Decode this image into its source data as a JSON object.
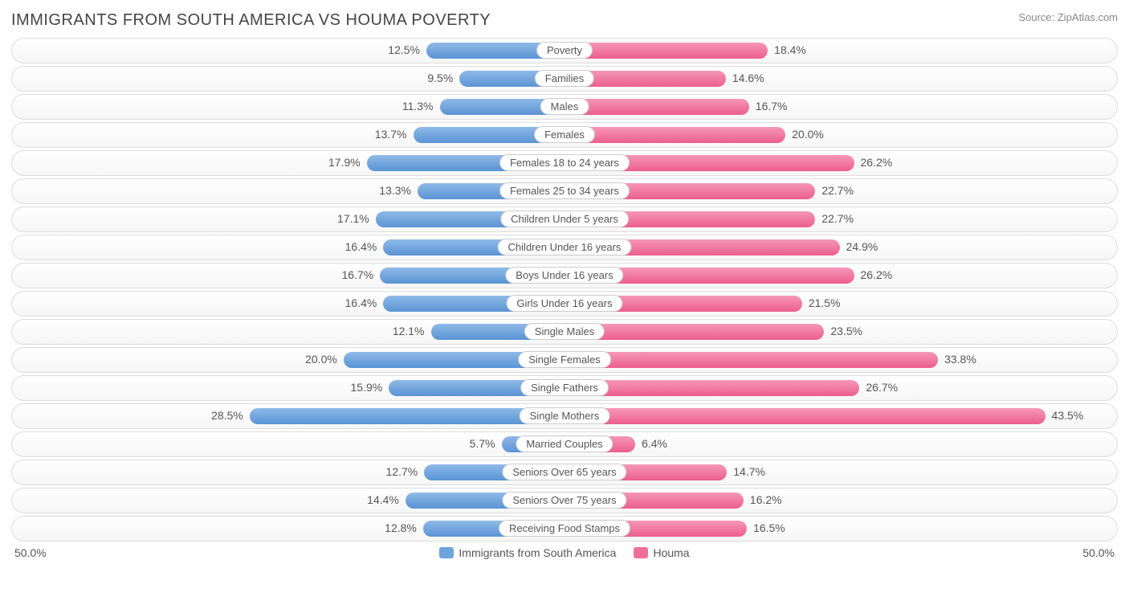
{
  "title": "IMMIGRANTS FROM SOUTH AMERICA VS HOUMA POVERTY",
  "source": "Source: ZipAtlas.com",
  "axis_max": 50.0,
  "axis_left_label": "50.0%",
  "axis_right_label": "50.0%",
  "left_series": {
    "name": "Immigrants from South America",
    "color_top": "#8fbae8",
    "color_bottom": "#5a93d4",
    "swatch": "#6fa3dc"
  },
  "right_series": {
    "name": "Houma",
    "color_top": "#f697b6",
    "color_bottom": "#ec5e8f",
    "swatch": "#ef6f9a"
  },
  "rows": [
    {
      "category": "Poverty",
      "left_val": 12.5,
      "left_label": "12.5%",
      "right_val": 18.4,
      "right_label": "18.4%"
    },
    {
      "category": "Families",
      "left_val": 9.5,
      "left_label": "9.5%",
      "right_val": 14.6,
      "right_label": "14.6%"
    },
    {
      "category": "Males",
      "left_val": 11.3,
      "left_label": "11.3%",
      "right_val": 16.7,
      "right_label": "16.7%"
    },
    {
      "category": "Females",
      "left_val": 13.7,
      "left_label": "13.7%",
      "right_val": 20.0,
      "right_label": "20.0%"
    },
    {
      "category": "Females 18 to 24 years",
      "left_val": 17.9,
      "left_label": "17.9%",
      "right_val": 26.2,
      "right_label": "26.2%"
    },
    {
      "category": "Females 25 to 34 years",
      "left_val": 13.3,
      "left_label": "13.3%",
      "right_val": 22.7,
      "right_label": "22.7%"
    },
    {
      "category": "Children Under 5 years",
      "left_val": 17.1,
      "left_label": "17.1%",
      "right_val": 22.7,
      "right_label": "22.7%"
    },
    {
      "category": "Children Under 16 years",
      "left_val": 16.4,
      "left_label": "16.4%",
      "right_val": 24.9,
      "right_label": "24.9%"
    },
    {
      "category": "Boys Under 16 years",
      "left_val": 16.7,
      "left_label": "16.7%",
      "right_val": 26.2,
      "right_label": "26.2%"
    },
    {
      "category": "Girls Under 16 years",
      "left_val": 16.4,
      "left_label": "16.4%",
      "right_val": 21.5,
      "right_label": "21.5%"
    },
    {
      "category": "Single Males",
      "left_val": 12.1,
      "left_label": "12.1%",
      "right_val": 23.5,
      "right_label": "23.5%"
    },
    {
      "category": "Single Females",
      "left_val": 20.0,
      "left_label": "20.0%",
      "right_val": 33.8,
      "right_label": "33.8%"
    },
    {
      "category": "Single Fathers",
      "left_val": 15.9,
      "left_label": "15.9%",
      "right_val": 26.7,
      "right_label": "26.7%"
    },
    {
      "category": "Single Mothers",
      "left_val": 28.5,
      "left_label": "28.5%",
      "right_val": 43.5,
      "right_label": "43.5%"
    },
    {
      "category": "Married Couples",
      "left_val": 5.7,
      "left_label": "5.7%",
      "right_val": 6.4,
      "right_label": "6.4%"
    },
    {
      "category": "Seniors Over 65 years",
      "left_val": 12.7,
      "left_label": "12.7%",
      "right_val": 14.7,
      "right_label": "14.7%"
    },
    {
      "category": "Seniors Over 75 years",
      "left_val": 14.4,
      "left_label": "14.4%",
      "right_val": 16.2,
      "right_label": "16.2%"
    },
    {
      "category": "Receiving Food Stamps",
      "left_val": 12.8,
      "left_label": "12.8%",
      "right_val": 16.5,
      "right_label": "16.5%"
    }
  ]
}
